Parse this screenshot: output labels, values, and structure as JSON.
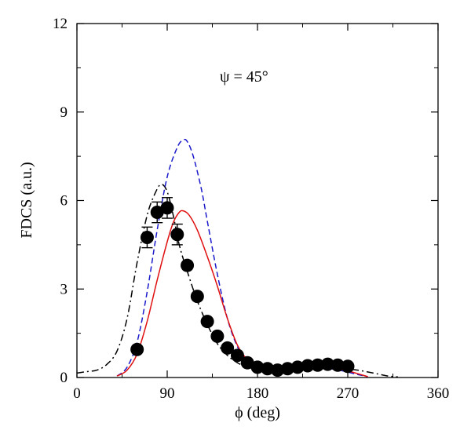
{
  "chart_data": {
    "type": "line",
    "title": "",
    "xlabel": "ϕ (deg)",
    "ylabel": "FDCS (a.u.)",
    "annotation": "ψ = 45°",
    "xlim": [
      0,
      360
    ],
    "ylim": [
      0,
      12
    ],
    "x_ticks": [
      0,
      90,
      180,
      270,
      360
    ],
    "y_ticks": [
      0,
      3,
      6,
      9,
      12
    ],
    "x_tick_labels": [
      "0",
      "90",
      "180",
      "270",
      "360"
    ],
    "y_tick_labels": [
      "0",
      "3",
      "6",
      "9",
      "12"
    ],
    "grid": false,
    "legend": "none",
    "series": [
      {
        "style": "dash-dot",
        "color": "#000000",
        "x": [
          0,
          10,
          20,
          30,
          40,
          50,
          60,
          70,
          78,
          84,
          90,
          96,
          102,
          110,
          120,
          130,
          140,
          150,
          160,
          170,
          180,
          200,
          220,
          240,
          260,
          280,
          300,
          310,
          320
        ],
        "y": [
          0.15,
          0.2,
          0.25,
          0.45,
          0.9,
          2.0,
          3.9,
          5.5,
          6.25,
          6.55,
          6.3,
          5.5,
          4.5,
          3.6,
          2.6,
          1.8,
          1.15,
          0.75,
          0.5,
          0.35,
          0.3,
          0.3,
          0.32,
          0.34,
          0.32,
          0.25,
          0.12,
          0.05,
          0.02
        ]
      },
      {
        "style": "dashed",
        "color": "#1a1acc",
        "x": [
          40,
          50,
          60,
          70,
          80,
          90,
          100,
          106,
          110,
          116,
          124,
          130,
          140,
          150,
          160,
          170,
          180,
          190,
          200,
          220,
          240,
          260,
          280,
          290
        ],
        "y": [
          0.05,
          0.35,
          1.2,
          2.9,
          5.0,
          6.8,
          7.8,
          8.05,
          8.0,
          7.5,
          6.4,
          5.3,
          3.5,
          2.0,
          1.05,
          0.55,
          0.4,
          0.35,
          0.33,
          0.33,
          0.33,
          0.26,
          0.1,
          0.03
        ]
      },
      {
        "style": "solid",
        "color": "#e01010",
        "x": [
          40,
          50,
          60,
          70,
          80,
          90,
          96,
          102,
          106,
          112,
          120,
          130,
          140,
          150,
          160,
          170,
          180,
          190,
          200,
          220,
          240,
          255,
          270,
          285,
          290
        ],
        "y": [
          0.05,
          0.25,
          0.8,
          1.9,
          3.3,
          4.6,
          5.25,
          5.6,
          5.65,
          5.5,
          5.0,
          4.1,
          3.1,
          2.0,
          1.1,
          0.6,
          0.35,
          0.28,
          0.25,
          0.25,
          0.3,
          0.3,
          0.22,
          0.08,
          0.03
        ]
      },
      {
        "style": "markers",
        "color": "#000000",
        "x": [
          60,
          70,
          80,
          90,
          100,
          110,
          120,
          130,
          140,
          150,
          160,
          170,
          180,
          190,
          200,
          210,
          220,
          230,
          240,
          250,
          260,
          270
        ],
        "y": [
          0.95,
          4.75,
          5.6,
          5.75,
          4.85,
          3.8,
          2.75,
          1.9,
          1.4,
          1.0,
          0.75,
          0.5,
          0.35,
          0.3,
          0.25,
          0.3,
          0.35,
          0.4,
          0.42,
          0.45,
          0.42,
          0.38
        ],
        "error": [
          0,
          0.35,
          0.35,
          0.35,
          0.35,
          0,
          0,
          0,
          0,
          0,
          0,
          0,
          0,
          0,
          0,
          0,
          0,
          0,
          0,
          0,
          0,
          0
        ]
      }
    ]
  }
}
